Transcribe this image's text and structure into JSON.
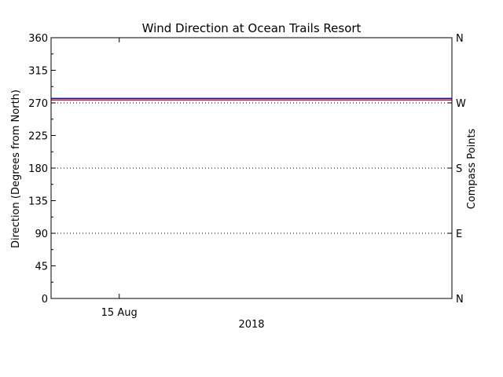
{
  "chart_data": {
    "type": "line",
    "title": "Wind Direction at Ocean Trails Resort",
    "ylabel": "Direction (Degrees from North)",
    "y2label": "Compass Points",
    "xlabel": "2018",
    "ylim": [
      0,
      360
    ],
    "yticks": [
      0,
      45,
      90,
      135,
      180,
      225,
      270,
      315,
      360
    ],
    "xtick_labels": [
      {
        "label": "15 Aug",
        "x": 0.17
      }
    ],
    "compass_ticks": [
      {
        "value": 0,
        "label": "N"
      },
      {
        "value": 90,
        "label": "E"
      },
      {
        "value": 180,
        "label": "S"
      },
      {
        "value": 270,
        "label": "W"
      },
      {
        "value": 360,
        "label": "N"
      }
    ],
    "reference_lines": [
      90,
      180,
      270
    ],
    "series": [
      {
        "color": "#0000ff",
        "y": 275
      },
      {
        "color": "#ff0000",
        "y": 275
      }
    ]
  }
}
